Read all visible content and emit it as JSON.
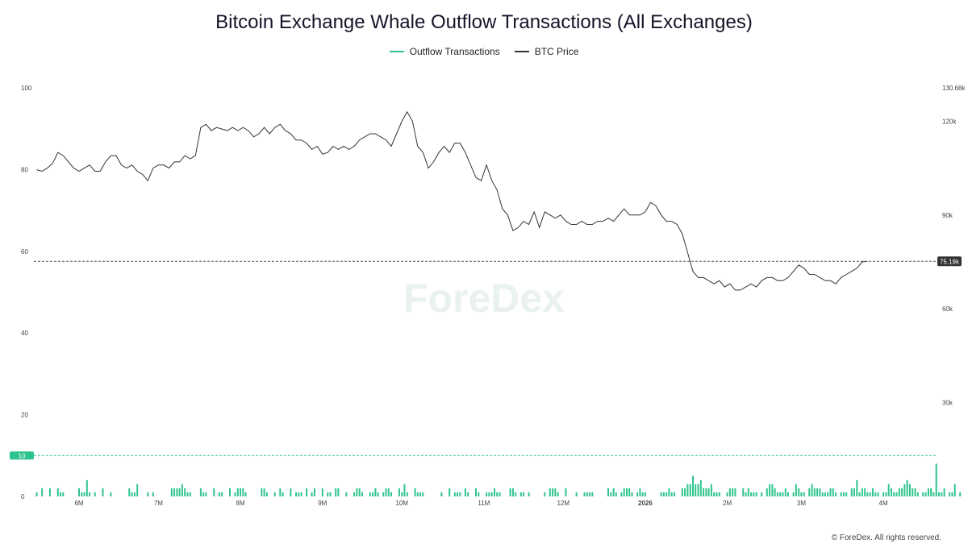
{
  "title": "Bitcoin Exchange Whale Outflow Transactions (All Exchanges)",
  "watermark": "ForeDex",
  "copyright": "© ForeDex. All rights reserved.",
  "colors": {
    "outflow": "#2fc48d",
    "price": "#333333",
    "marker_bg": "#2fc48d",
    "price_marker_bg": "#333333"
  },
  "chart_data": {
    "type": "bar+line",
    "legend": [
      "Outflow Transactions",
      "BTC Price"
    ],
    "legend_position": "top-center",
    "x_ticks": [
      {
        "label": "6M",
        "day": 0
      },
      {
        "label": "7M",
        "day": 30
      },
      {
        "label": "8M",
        "day": 61
      },
      {
        "label": "9M",
        "day": 92
      },
      {
        "label": "10M",
        "day": 122
      },
      {
        "label": "11M",
        "day": 153
      },
      {
        "label": "12M",
        "day": 183
      },
      {
        "label": "2026",
        "day": 214,
        "bold": true
      },
      {
        "label": "2M",
        "day": 245
      },
      {
        "label": "3M",
        "day": 273
      },
      {
        "label": "4M",
        "day": 304
      }
    ],
    "left_axis": {
      "ticks": [
        0,
        10,
        20,
        40,
        60,
        80,
        100
      ],
      "ylim": [
        0,
        100
      ],
      "highlighted": 10
    },
    "right_axis": {
      "ticks": [
        "30k",
        "60k",
        "90k",
        "120k",
        "130.68k"
      ],
      "current": "75.19k"
    },
    "outflow_series": {
      "name": "Outflow Transactions",
      "day_range": [
        -16,
        324
      ],
      "values": [
        1,
        0,
        2,
        0,
        0,
        2,
        0,
        0,
        2,
        1,
        1,
        0,
        0,
        0,
        0,
        0,
        2,
        1,
        1,
        4,
        1,
        0,
        1,
        0,
        0,
        2,
        0,
        0,
        1,
        0,
        0,
        0,
        0,
        0,
        0,
        2,
        1,
        1,
        3,
        0,
        0,
        0,
        1,
        0,
        1,
        0,
        0,
        0,
        0,
        0,
        0,
        2,
        2,
        2,
        2,
        3,
        2,
        1,
        1,
        0,
        0,
        0,
        2,
        1,
        1,
        0,
        0,
        2,
        0,
        1,
        1,
        0,
        0,
        2,
        0,
        1,
        2,
        2,
        2,
        1,
        0,
        0,
        0,
        0,
        0,
        2,
        2,
        1,
        0,
        0,
        1,
        0,
        2,
        1,
        0,
        0,
        2,
        0,
        1,
        1,
        1,
        0,
        2,
        0,
        1,
        2,
        0,
        0,
        2,
        0,
        1,
        1,
        0,
        2,
        2,
        0,
        0,
        1,
        0,
        0,
        1,
        2,
        2,
        1,
        0,
        0,
        1,
        1,
        2,
        1,
        0,
        1,
        2,
        2,
        1,
        0,
        0,
        2,
        1,
        3,
        1,
        0,
        0,
        2,
        1,
        1,
        1,
        0,
        0,
        0,
        0,
        0,
        0,
        1,
        0,
        0,
        2,
        0,
        1,
        1,
        1,
        0,
        2,
        1,
        0,
        0,
        2,
        1,
        0,
        0,
        1,
        1,
        1,
        2,
        1,
        1,
        0,
        0,
        0,
        2,
        2,
        1,
        0,
        1,
        1,
        0,
        1,
        0,
        0,
        0,
        0,
        0,
        1,
        0,
        2,
        2,
        2,
        1,
        0,
        0,
        2,
        0,
        0,
        0,
        1,
        0,
        0,
        1,
        1,
        1,
        1,
        0,
        0,
        0,
        0,
        0,
        2,
        1,
        2,
        1,
        0,
        1,
        2,
        2,
        2,
        1,
        0,
        1,
        2,
        1,
        1,
        0,
        0,
        0,
        0,
        0,
        1,
        1,
        1,
        2,
        1,
        1,
        0,
        0,
        2,
        2,
        3,
        3,
        5,
        3,
        3,
        4,
        2,
        2,
        2,
        3,
        1,
        1,
        1,
        0,
        0,
        1,
        2,
        2,
        2,
        0,
        0,
        2,
        1,
        2,
        1,
        1,
        1,
        0,
        1,
        0,
        2,
        3,
        3,
        2,
        1,
        1,
        1,
        2,
        1,
        0,
        1,
        3,
        2,
        1,
        1,
        0,
        2,
        3,
        2,
        2,
        2,
        1,
        1,
        1,
        2,
        2,
        1,
        0,
        1,
        1,
        1,
        0,
        2,
        2,
        4,
        1,
        2,
        2,
        1,
        1,
        2,
        1,
        1,
        0,
        1,
        1,
        3,
        2,
        1,
        1,
        2,
        2,
        3,
        4,
        3,
        2,
        2,
        1,
        0,
        1,
        1,
        2,
        2,
        1,
        8,
        1,
        1,
        2,
        0,
        1,
        1,
        3,
        0,
        1,
        0,
        0,
        0,
        0,
        0,
        0,
        0,
        0,
        0,
        0,
        0
      ]
    },
    "price_series": {
      "name": "BTC Price",
      "points": [
        [
          -16,
          104.5
        ],
        [
          -14,
          104
        ],
        [
          -12,
          105
        ],
        [
          -10,
          106.5
        ],
        [
          -8,
          110
        ],
        [
          -6,
          109
        ],
        [
          -4,
          107
        ],
        [
          -2,
          105
        ],
        [
          0,
          104
        ],
        [
          2,
          105
        ],
        [
          4,
          106
        ],
        [
          6,
          104
        ],
        [
          8,
          104
        ],
        [
          10,
          107
        ],
        [
          12,
          109
        ],
        [
          14,
          109
        ],
        [
          16,
          106
        ],
        [
          18,
          105
        ],
        [
          20,
          106
        ],
        [
          22,
          104
        ],
        [
          24,
          103
        ],
        [
          26,
          101
        ],
        [
          28,
          105
        ],
        [
          30,
          106
        ],
        [
          32,
          106
        ],
        [
          34,
          105
        ],
        [
          36,
          107
        ],
        [
          38,
          107
        ],
        [
          40,
          109
        ],
        [
          42,
          108
        ],
        [
          44,
          109
        ],
        [
          46,
          118
        ],
        [
          48,
          119
        ],
        [
          50,
          117
        ],
        [
          52,
          118
        ],
        [
          54,
          117.5
        ],
        [
          56,
          117
        ],
        [
          58,
          118
        ],
        [
          60,
          117
        ],
        [
          62,
          118
        ],
        [
          64,
          117
        ],
        [
          66,
          115
        ],
        [
          68,
          116
        ],
        [
          70,
          118
        ],
        [
          72,
          116
        ],
        [
          74,
          118
        ],
        [
          76,
          119
        ],
        [
          78,
          117
        ],
        [
          80,
          116
        ],
        [
          82,
          114
        ],
        [
          84,
          114
        ],
        [
          86,
          113
        ],
        [
          88,
          111
        ],
        [
          90,
          112
        ],
        [
          92,
          109.5
        ],
        [
          94,
          110
        ],
        [
          96,
          112
        ],
        [
          98,
          111
        ],
        [
          100,
          112
        ],
        [
          102,
          111
        ],
        [
          104,
          112
        ],
        [
          106,
          114
        ],
        [
          108,
          115
        ],
        [
          110,
          116
        ],
        [
          112,
          116
        ],
        [
          114,
          115
        ],
        [
          116,
          114
        ],
        [
          118,
          112
        ],
        [
          120,
          116
        ],
        [
          122,
          120
        ],
        [
          124,
          123
        ],
        [
          126,
          120
        ],
        [
          128,
          112
        ],
        [
          130,
          110
        ],
        [
          132,
          105
        ],
        [
          134,
          107
        ],
        [
          136,
          110
        ],
        [
          138,
          112
        ],
        [
          140,
          110
        ],
        [
          142,
          113
        ],
        [
          144,
          113
        ],
        [
          146,
          110
        ],
        [
          148,
          106
        ],
        [
          150,
          102
        ],
        [
          152,
          101
        ],
        [
          154,
          106
        ],
        [
          156,
          101
        ],
        [
          158,
          98
        ],
        [
          160,
          92
        ],
        [
          162,
          90
        ],
        [
          164,
          85
        ],
        [
          166,
          86
        ],
        [
          168,
          88
        ],
        [
          170,
          87
        ],
        [
          172,
          91
        ],
        [
          174,
          86
        ],
        [
          176,
          91
        ],
        [
          178,
          90
        ],
        [
          180,
          89
        ],
        [
          182,
          90
        ],
        [
          184,
          88
        ],
        [
          186,
          87
        ],
        [
          188,
          87
        ],
        [
          190,
          88
        ],
        [
          192,
          87
        ],
        [
          194,
          87
        ],
        [
          196,
          88
        ],
        [
          198,
          88
        ],
        [
          200,
          89
        ],
        [
          202,
          88
        ],
        [
          204,
          90
        ],
        [
          206,
          92
        ],
        [
          208,
          90
        ],
        [
          210,
          90
        ],
        [
          212,
          90
        ],
        [
          214,
          91
        ],
        [
          216,
          94
        ],
        [
          218,
          93
        ],
        [
          220,
          90
        ],
        [
          222,
          88
        ],
        [
          224,
          88
        ],
        [
          226,
          87
        ],
        [
          228,
          84
        ],
        [
          230,
          78
        ],
        [
          232,
          72
        ],
        [
          234,
          70
        ],
        [
          236,
          70
        ],
        [
          238,
          69
        ],
        [
          240,
          68
        ],
        [
          242,
          69
        ],
        [
          244,
          67
        ],
        [
          246,
          68
        ],
        [
          248,
          66
        ],
        [
          250,
          66
        ],
        [
          252,
          67
        ],
        [
          254,
          68
        ],
        [
          256,
          67
        ],
        [
          258,
          69
        ],
        [
          260,
          70
        ],
        [
          262,
          70
        ],
        [
          264,
          69
        ],
        [
          266,
          69
        ],
        [
          268,
          70
        ],
        [
          270,
          72
        ],
        [
          272,
          74
        ],
        [
          274,
          73
        ],
        [
          276,
          71
        ],
        [
          278,
          71
        ],
        [
          280,
          70
        ],
        [
          282,
          69
        ],
        [
          284,
          69
        ],
        [
          286,
          68
        ],
        [
          288,
          70
        ],
        [
          290,
          71
        ],
        [
          292,
          72
        ],
        [
          294,
          73
        ],
        [
          296,
          75
        ],
        [
          298,
          75.19
        ]
      ]
    },
    "price_scale": {
      "y100": 130.68,
      "y0": 0
    }
  }
}
